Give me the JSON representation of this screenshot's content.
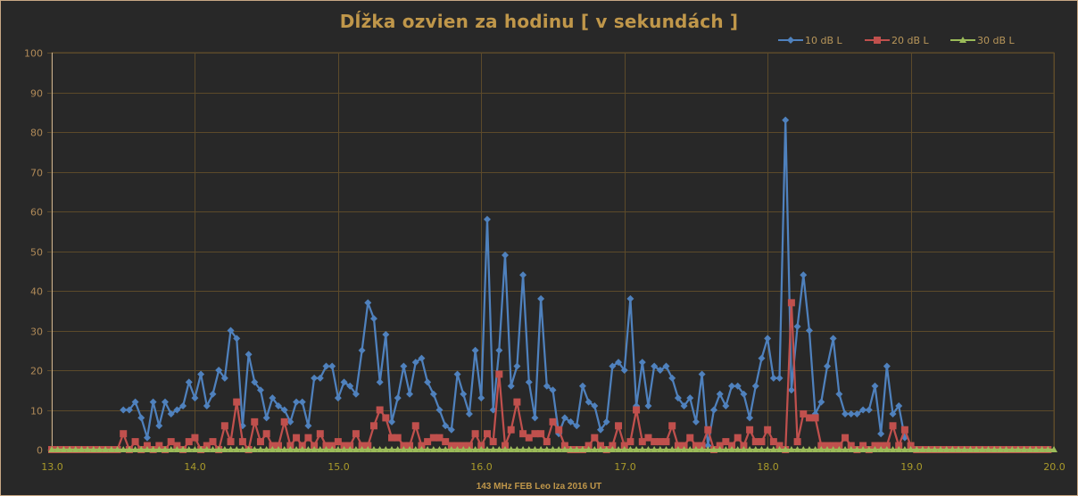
{
  "chart_data": {
    "type": "line",
    "title": "Dĺžka ozvien za hodinu [ v sekundách ]",
    "xlabel": "143 MHz FEB Leo Iza  2016  UT",
    "ylabel": "",
    "xlim": [
      13.0,
      20.0
    ],
    "ylim": [
      0,
      100
    ],
    "x_ticks": [
      "13.0",
      "14.0",
      "15.0",
      "16.0",
      "17.0",
      "18.0",
      "19.0",
      "20.0"
    ],
    "y_ticks": [
      "0",
      "10",
      "20",
      "30",
      "40",
      "50",
      "60",
      "70",
      "80",
      "90",
      "100"
    ],
    "grid": true,
    "legend_position": "top-right",
    "x_step_hours": 0.041667,
    "series": [
      {
        "name": "10 dB L",
        "color": "#4f81bd",
        "marker": "diamond",
        "x_start": 13.5,
        "values": [
          10,
          10,
          12,
          8,
          3,
          12,
          6,
          12,
          9,
          10,
          11,
          17,
          13,
          19,
          11,
          14,
          20,
          18,
          30,
          28,
          6,
          24,
          17,
          15,
          8,
          13,
          11,
          10,
          7,
          12,
          12,
          6,
          18,
          18,
          21,
          21,
          13,
          17,
          16,
          14,
          25,
          37,
          33,
          17,
          29,
          7,
          13,
          21,
          14,
          22,
          23,
          17,
          14,
          10,
          6,
          5,
          19,
          14,
          9,
          25,
          13,
          58,
          10,
          25,
          49,
          16,
          21,
          44,
          17,
          8,
          38,
          16,
          15,
          4,
          8,
          7,
          6,
          16,
          12,
          11,
          5,
          7,
          21,
          22,
          20,
          38,
          11,
          22,
          11,
          21,
          20,
          21,
          18,
          13,
          11,
          13,
          7,
          19,
          1,
          10,
          14,
          11,
          16,
          16,
          14,
          8,
          16,
          23,
          28,
          18,
          18,
          83,
          15,
          31,
          44,
          30,
          9,
          12,
          21,
          28,
          14,
          9,
          9,
          9,
          10,
          10,
          16,
          4,
          21,
          9,
          11,
          3
        ]
      },
      {
        "name": "20 dB L",
        "color": "#c0504d",
        "marker": "square",
        "x_start": 13.0,
        "values_note": "0 from 13.0 to 13.5 and from 18.96 to 20.0",
        "values": [
          4,
          0,
          2,
          0,
          1,
          0,
          1,
          0,
          2,
          1,
          0,
          2,
          3,
          0,
          1,
          2,
          0,
          6,
          2,
          12,
          2,
          0,
          7,
          2,
          4,
          1,
          1,
          7,
          1,
          3,
          1,
          3,
          1,
          4,
          1,
          1,
          2,
          1,
          1,
          4,
          1,
          1,
          6,
          10,
          8,
          3,
          3,
          1,
          1,
          6,
          1,
          2,
          3,
          3,
          2,
          1,
          1,
          1,
          1,
          4,
          1,
          4,
          2,
          19,
          1,
          5,
          12,
          4,
          3,
          4,
          4,
          2,
          7,
          5,
          1,
          0,
          0,
          0,
          1,
          3,
          1,
          0,
          1,
          6,
          1,
          2,
          10,
          2,
          3,
          2,
          2,
          2,
          6,
          1,
          1,
          3,
          1,
          1,
          5,
          0,
          1,
          2,
          1,
          3,
          1,
          5,
          2,
          2,
          5,
          2,
          1,
          0,
          37,
          2,
          9,
          8,
          8,
          1,
          1,
          1,
          1,
          3,
          1,
          0,
          1,
          0,
          1,
          1,
          1,
          6,
          1,
          5,
          1,
          0
        ]
      },
      {
        "name": "30 dB L",
        "color": "#9bbb59",
        "marker": "triangle",
        "x_start": 13.0,
        "values_note": "0 across full range 13.0 to 20.0",
        "values": [
          0
        ]
      }
    ]
  },
  "legend": {
    "items": [
      {
        "label": "10 dB L",
        "color": "#4f81bd"
      },
      {
        "label": "20 dB L",
        "color": "#c0504d"
      },
      {
        "label": "30 dB L",
        "color": "#9bbb59"
      }
    ]
  },
  "colors": {
    "background": "#282828",
    "gridline": "#5c4a2a",
    "title_text": "#c0974a",
    "y_tick_text": "#b08a58",
    "x_tick_text": "#a99a2a",
    "frame_border": "#c8a884"
  }
}
